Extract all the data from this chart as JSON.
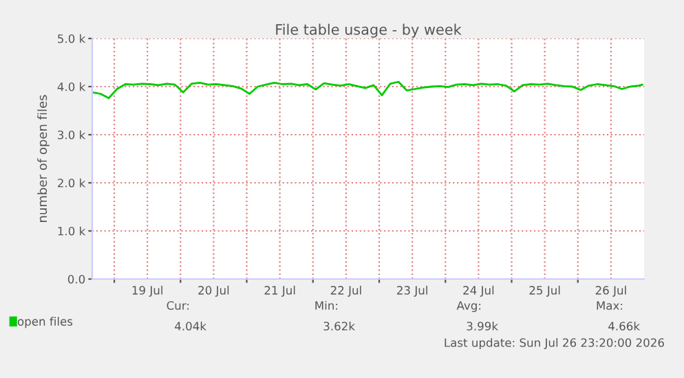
{
  "chart_data": {
    "type": "line",
    "title": "File table usage - by week",
    "ylabel": "number of open files",
    "x": [
      "2026-07-18T16:00",
      "2026-07-18T19:00",
      "2026-07-18T22:00",
      "2026-07-19T01:00",
      "2026-07-19T04:00",
      "2026-07-19T07:00",
      "2026-07-19T10:00",
      "2026-07-19T13:00",
      "2026-07-19T16:00",
      "2026-07-19T19:00",
      "2026-07-19T22:00",
      "2026-07-20T01:00",
      "2026-07-20T04:00",
      "2026-07-20T07:00",
      "2026-07-20T10:00",
      "2026-07-20T13:00",
      "2026-07-20T16:00",
      "2026-07-20T19:00",
      "2026-07-20T22:00",
      "2026-07-21T01:00",
      "2026-07-21T04:00",
      "2026-07-21T07:00",
      "2026-07-21T10:00",
      "2026-07-21T13:00",
      "2026-07-21T16:00",
      "2026-07-21T19:00",
      "2026-07-21T22:00",
      "2026-07-22T01:00",
      "2026-07-22T04:00",
      "2026-07-22T07:00",
      "2026-07-22T10:00",
      "2026-07-22T13:00",
      "2026-07-22T16:00",
      "2026-07-22T19:00",
      "2026-07-22T22:00",
      "2026-07-23T01:00",
      "2026-07-23T04:00",
      "2026-07-23T07:00",
      "2026-07-23T10:00",
      "2026-07-23T13:00",
      "2026-07-23T16:00",
      "2026-07-23T19:00",
      "2026-07-23T22:00",
      "2026-07-24T01:00",
      "2026-07-24T04:00",
      "2026-07-24T07:00",
      "2026-07-24T10:00",
      "2026-07-24T13:00",
      "2026-07-24T16:00",
      "2026-07-24T19:00",
      "2026-07-24T22:00",
      "2026-07-25T01:00",
      "2026-07-25T04:00",
      "2026-07-25T07:00",
      "2026-07-25T10:00",
      "2026-07-25T13:00",
      "2026-07-25T16:00",
      "2026-07-25T19:00",
      "2026-07-25T22:00",
      "2026-07-26T01:00",
      "2026-07-26T04:00",
      "2026-07-26T07:00",
      "2026-07-26T10:00",
      "2026-07-26T13:00",
      "2026-07-26T16:00",
      "2026-07-26T19:00",
      "2026-07-26T22:00",
      "2026-07-26T23:20"
    ],
    "series": [
      {
        "name": "open files",
        "color": "#00cc00",
        "values": [
          3880,
          3850,
          3760,
          3950,
          4050,
          4040,
          4060,
          4050,
          4030,
          4060,
          4040,
          3880,
          4060,
          4080,
          4040,
          4050,
          4030,
          4010,
          3960,
          3850,
          4000,
          4040,
          4080,
          4050,
          4060,
          4030,
          4050,
          3940,
          4070,
          4040,
          4020,
          4050,
          4010,
          3970,
          4030,
          3820,
          4060,
          4100,
          3920,
          3950,
          3980,
          4000,
          4010,
          3990,
          4040,
          4050,
          4030,
          4060,
          4040,
          4050,
          4020,
          3900,
          4030,
          4050,
          4040,
          4060,
          4030,
          4010,
          4000,
          3930,
          4020,
          4050,
          4030,
          4010,
          3950,
          4000,
          4020,
          4040
        ]
      }
    ],
    "xlim": [
      "2026-07-18T16:00",
      "2026-07-27T00:00"
    ],
    "xticks": [
      {
        "value": "2026-07-19T00:00",
        "label": null
      },
      {
        "value": "2026-07-19T12:00",
        "label": "19 Jul"
      },
      {
        "value": "2026-07-20T00:00",
        "label": null
      },
      {
        "value": "2026-07-20T12:00",
        "label": "20 Jul"
      },
      {
        "value": "2026-07-21T00:00",
        "label": null
      },
      {
        "value": "2026-07-21T12:00",
        "label": "21 Jul"
      },
      {
        "value": "2026-07-22T00:00",
        "label": null
      },
      {
        "value": "2026-07-22T12:00",
        "label": "22 Jul"
      },
      {
        "value": "2026-07-23T00:00",
        "label": null
      },
      {
        "value": "2026-07-23T12:00",
        "label": "23 Jul"
      },
      {
        "value": "2026-07-24T00:00",
        "label": null
      },
      {
        "value": "2026-07-24T12:00",
        "label": "24 Jul"
      },
      {
        "value": "2026-07-25T00:00",
        "label": null
      },
      {
        "value": "2026-07-25T12:00",
        "label": "25 Jul"
      },
      {
        "value": "2026-07-26T00:00",
        "label": null
      },
      {
        "value": "2026-07-26T12:00",
        "label": "26 Jul"
      }
    ],
    "ylim": [
      0,
      5000
    ],
    "yticks": [
      {
        "value": 0,
        "label": "0.0"
      },
      {
        "value": 1000,
        "label": "1.0 k"
      },
      {
        "value": 2000,
        "label": "2.0 k"
      },
      {
        "value": 3000,
        "label": "3.0 k"
      },
      {
        "value": 4000,
        "label": "4.0 k"
      },
      {
        "value": 5000,
        "label": "5.0 k"
      }
    ],
    "grid": true,
    "legend": "bottom left",
    "annotations": [
      "Cur:",
      "4.04k",
      "Min:",
      "3.62k",
      "Avg:",
      "3.99k",
      "Max:",
      "4.66k",
      "Last update: Sun Jul 26 23:20:00 2026"
    ]
  }
}
